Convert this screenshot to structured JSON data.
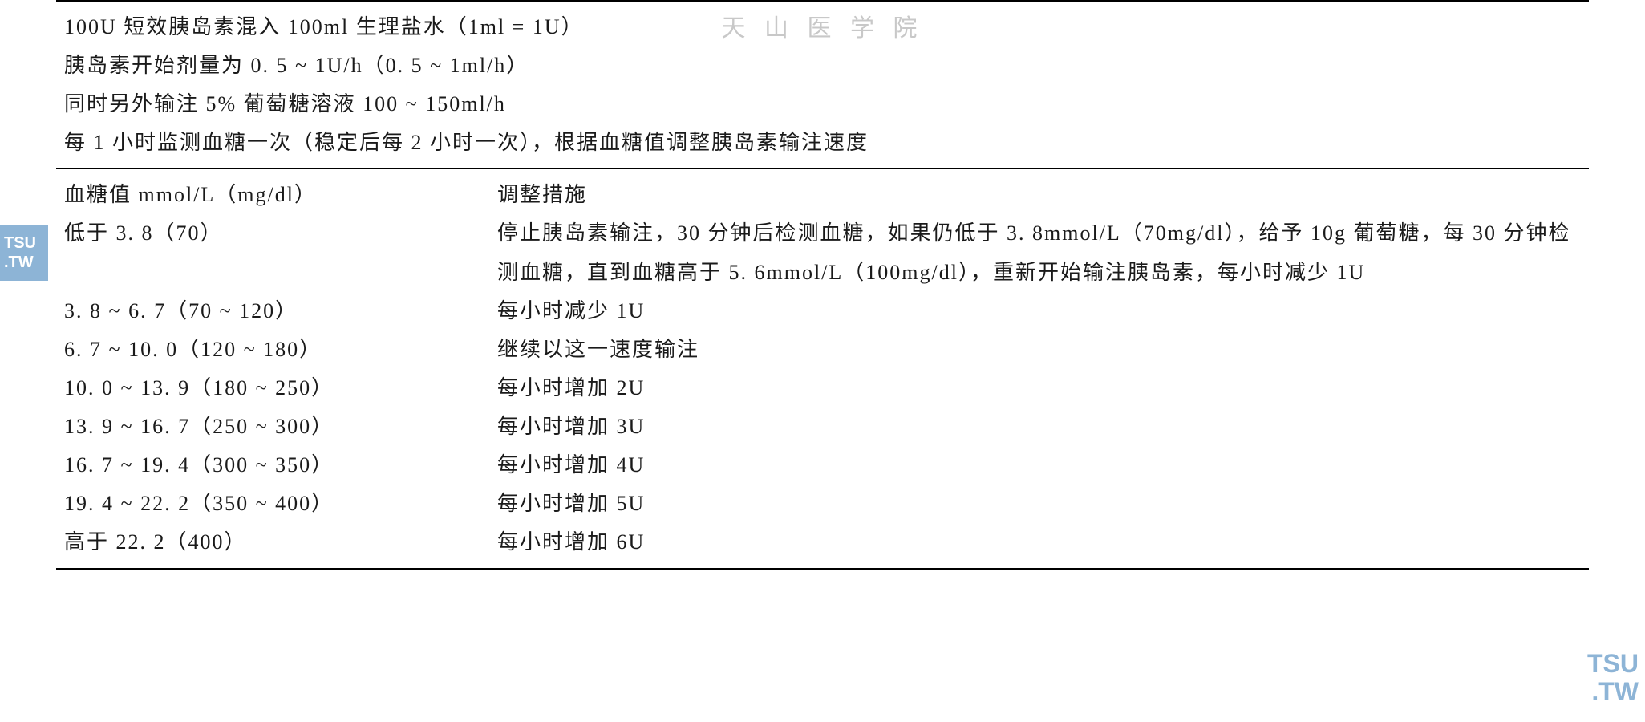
{
  "watermarks": {
    "top": "天 山 医 学 院",
    "left_line1": "TSU",
    "left_line2": ".TW",
    "right_line1": "TSU",
    "right_line2": ".TW"
  },
  "instructions": {
    "line1": "100U 短效胰岛素混入 100ml 生理盐水（1ml = 1U）",
    "line2": "胰岛素开始剂量为 0. 5 ~ 1U/h（0. 5 ~ 1ml/h）",
    "line3": "同时另外输注 5% 葡萄糖溶液 100 ~ 150ml/h",
    "line4": "每 1 小时监测血糖一次（稳定后每 2 小时一次），根据血糖值调整胰岛素输注速度"
  },
  "header": {
    "col1": "血糖值 mmol/L（mg/dl）",
    "col2": "调整措施"
  },
  "rows": [
    {
      "glucose": "低于 3. 8（70）",
      "action": "停止胰岛素输注，30 分钟后检测血糖，如果仍低于 3. 8mmol/L（70mg/dl），给予 10g 葡萄糖，每 30 分钟检测血糖，直到血糖高于 5. 6mmol/L（100mg/dl），重新开始输注胰岛素，每小时减少 1U"
    },
    {
      "glucose": "3. 8 ~ 6. 7（70 ~ 120）",
      "action": "每小时减少 1U"
    },
    {
      "glucose": "6. 7 ~ 10. 0（120 ~ 180）",
      "action": "继续以这一速度输注"
    },
    {
      "glucose": "10. 0 ~ 13. 9（180 ~ 250）",
      "action": "每小时增加 2U"
    },
    {
      "glucose": "13. 9 ~ 16. 7（250 ~ 300）",
      "action": "每小时增加 3U"
    },
    {
      "glucose": "16. 7 ~ 19. 4（300 ~ 350）",
      "action": "每小时增加 4U"
    },
    {
      "glucose": "19. 4 ~ 22. 2（350 ~ 400）",
      "action": "每小时增加 5U"
    },
    {
      "glucose": "高于 22. 2（400）",
      "action": "每小时增加 6U"
    }
  ]
}
